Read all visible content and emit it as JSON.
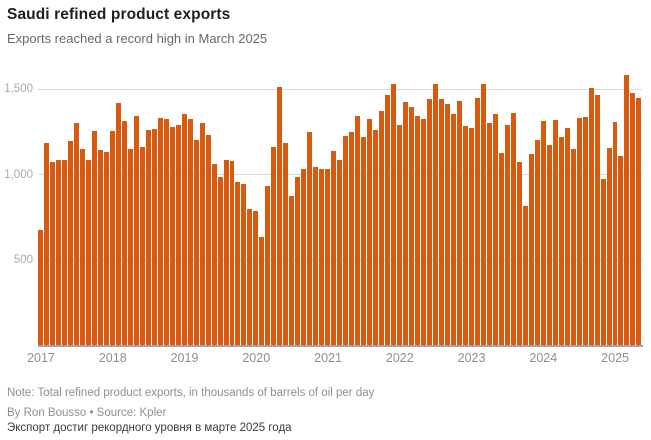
{
  "header": {
    "title": "Saudi refined product exports",
    "subtitle": "Exports reached a record high in March 2025"
  },
  "chart_data": {
    "type": "bar",
    "title": "Saudi refined product exports",
    "subtitle": "Exports reached a record high in March 2025",
    "unit": "thousands of barrels of oil per day",
    "x_start": "2017-01",
    "x_end": "2025-05",
    "x_labels": [
      "2017",
      "2018",
      "2019",
      "2020",
      "2021",
      "2022",
      "2023",
      "2024",
      "2025"
    ],
    "y_ticks": [
      500,
      1000,
      1500
    ],
    "y_tick_labels": [
      "500",
      "1,000",
      "1,500"
    ],
    "y_axis_max": 1614,
    "grid": true,
    "legend": false,
    "bar_color": "#d95a0f",
    "record": {
      "month": "2025-03",
      "value": 1585
    },
    "monthly_values": [
      680,
      1185,
      1075,
      1085,
      1085,
      1200,
      1305,
      1150,
      1090,
      1260,
      1145,
      1135,
      1255,
      1420,
      1315,
      1155,
      1345,
      1165,
      1265,
      1270,
      1335,
      1325,
      1280,
      1290,
      1355,
      1330,
      1205,
      1305,
      1235,
      1065,
      990,
      1090,
      1080,
      960,
      945,
      800,
      790,
      635,
      935,
      1165,
      1515,
      1185,
      880,
      990,
      1035,
      1250,
      1045,
      1035,
      1035,
      1140,
      1085,
      1230,
      1250,
      1345,
      1220,
      1325,
      1265,
      1375,
      1470,
      1530,
      1295,
      1425,
      1395,
      1345,
      1330,
      1445,
      1535,
      1445,
      1415,
      1355,
      1435,
      1285,
      1275,
      1450,
      1530,
      1305,
      1355,
      1130,
      1295,
      1365,
      1075,
      820,
      1120,
      1205,
      1315,
      1175,
      1320,
      1220,
      1275,
      1150,
      1335,
      1340,
      1510,
      1465,
      975,
      1160,
      1310,
      1110,
      1585,
      1480,
      1450
    ]
  },
  "footer": {
    "note": "Note: Total refined product exports, in thousands of barrels of oil per day",
    "byline": "By Ron Bousso • Source: Kpler",
    "localized_caption": "Экспорт достиг рекордного уровня в марте 2025 года"
  }
}
